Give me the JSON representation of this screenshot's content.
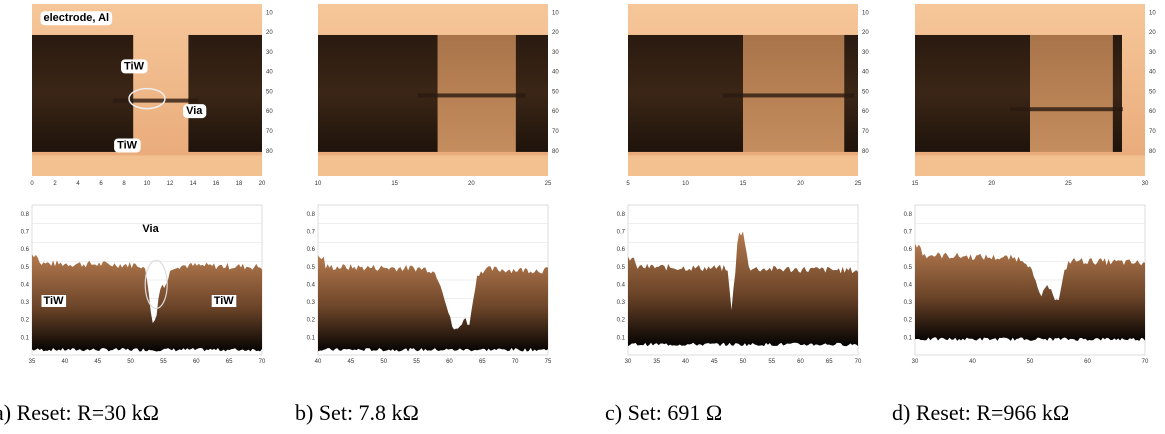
{
  "panels": [
    {
      "caption": "a) Reset: R=30 kΩ",
      "image_labels": [
        "electrode, Al",
        "TiW",
        "Via",
        "TiW"
      ],
      "profile_labels": [
        "Via",
        "TiW",
        "TiW"
      ],
      "image_xticks": [
        0,
        2,
        4,
        6,
        8,
        10,
        12,
        14,
        16,
        18,
        20
      ],
      "profile_xticks": [
        35,
        40,
        45,
        50,
        55,
        60,
        65,
        70
      ]
    },
    {
      "caption": "b) Set: 7.8 kΩ",
      "image_labels": [],
      "profile_labels": [],
      "image_xticks": [
        10,
        15,
        20,
        25
      ],
      "profile_xticks": [
        40,
        45,
        50,
        55,
        60,
        65,
        70,
        75
      ]
    },
    {
      "caption": "c) Set: 691 Ω",
      "image_labels": [],
      "profile_labels": [],
      "image_xticks": [
        5,
        10,
        15,
        20,
        25
      ],
      "profile_xticks": [
        30,
        35,
        40,
        45,
        50,
        55,
        60,
        65,
        70
      ]
    },
    {
      "caption": "d) Reset: R=966 kΩ",
      "image_labels": [],
      "profile_labels": [],
      "image_xticks": [
        15,
        20,
        25,
        30
      ],
      "profile_xticks": [
        30,
        40,
        50,
        60,
        70
      ]
    }
  ],
  "image_yticks": [
    10,
    20,
    30,
    40,
    50,
    60,
    70,
    80
  ],
  "profile_yticks": [
    0.1,
    0.2,
    0.3,
    0.4,
    0.5,
    0.6,
    0.7,
    0.8
  ]
}
